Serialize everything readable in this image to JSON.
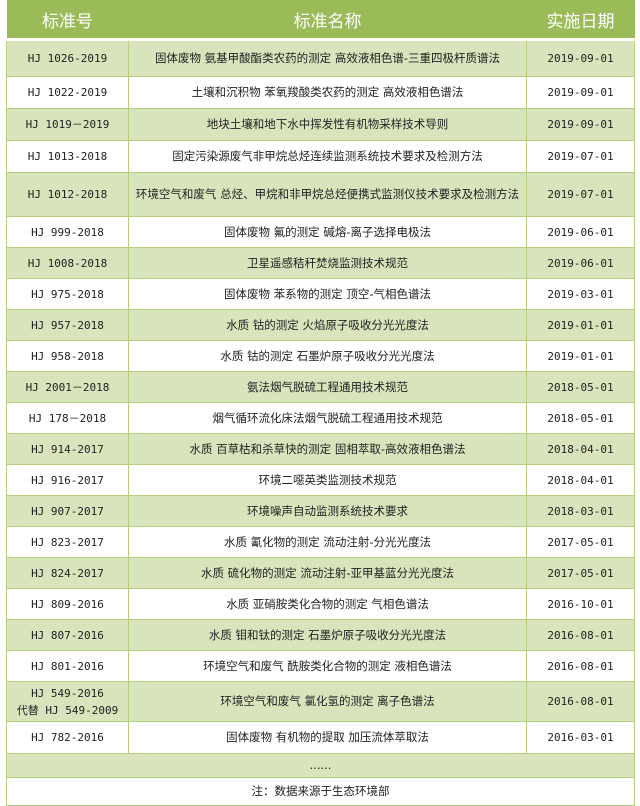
{
  "header": {
    "code": "标准号",
    "name": "标准名称",
    "date": "实施日期"
  },
  "colors": {
    "header": "#9bbb59",
    "stripe": "#d8e4bc"
  },
  "rows": [
    {
      "code": "HJ 1026-2019",
      "name": "固体废物 氨基甲酸酯类农药的测定 高效液相色谱-三重四极杆质谱法",
      "date": "2019-09-01"
    },
    {
      "code": "HJ 1022-2019",
      "name": "土壤和沉积物 苯氧羧酸类农药的测定 高效液相色谱法",
      "date": "2019-09-01"
    },
    {
      "code": "HJ 1019－2019",
      "name": "地块土壤和地下水中挥发性有机物采样技术导则",
      "date": "2019-09-01"
    },
    {
      "code": "HJ 1013-2018",
      "name": "固定污染源废气非甲烷总烃连续监测系统技术要求及检测方法",
      "date": "2019-07-01"
    },
    {
      "code": "HJ 1012-2018",
      "name": "环境空气和废气 总烃、甲烷和非甲烷总烃便携式监测仪技术要求及检测方法",
      "date": "2019-07-01"
    },
    {
      "code": "HJ 999-2018",
      "name": "固体废物 氟的测定 碱熔-离子选择电极法",
      "date": "2019-06-01"
    },
    {
      "code": "HJ 1008-2018",
      "name": "卫星遥感秸秆焚烧监测技术规范",
      "date": "2019-06-01"
    },
    {
      "code": "HJ 975-2018",
      "name": "固体废物 苯系物的测定 顶空-气相色谱法",
      "date": "2019-03-01"
    },
    {
      "code": "HJ 957-2018",
      "name": "水质 钴的测定 火焰原子吸收分光光度法",
      "date": "2019-01-01"
    },
    {
      "code": "HJ 958-2018",
      "name": "水质 钴的测定 石墨炉原子吸收分光光度法",
      "date": "2019-01-01"
    },
    {
      "code": "HJ 2001－2018",
      "name": "氨法烟气脱硫工程通用技术规范",
      "date": "2018-05-01"
    },
    {
      "code": "HJ 178－2018",
      "name": "烟气循环流化床法烟气脱硫工程通用技术规范",
      "date": "2018-05-01"
    },
    {
      "code": "HJ 914-2017",
      "name": "水质 百草枯和杀草快的测定 固相萃取-高效液相色谱法",
      "date": "2018-04-01"
    },
    {
      "code": "HJ 916-2017",
      "name": "环境二噁英类监测技术规范",
      "date": "2018-04-01"
    },
    {
      "code": "HJ 907-2017",
      "name": "环境噪声自动监测系统技术要求",
      "date": "2018-03-01"
    },
    {
      "code": "HJ 823-2017",
      "name": "水质 氰化物的测定 流动注射-分光光度法",
      "date": "2017-05-01"
    },
    {
      "code": "HJ 824-2017",
      "name": "水质 硫化物的测定 流动注射-亚甲基蓝分光光度法",
      "date": "2017-05-01"
    },
    {
      "code": "HJ 809-2016",
      "name": "水质 亚硝胺类化合物的测定 气相色谱法",
      "date": "2016-10-01"
    },
    {
      "code": "HJ 807-2016",
      "name": "水质 钼和钛的测定 石墨炉原子吸收分光光度法",
      "date": "2016-08-01"
    },
    {
      "code": "HJ 801-2016",
      "name": "环境空气和废气 酰胺类化合物的测定 液相色谱法",
      "date": "2016-08-01"
    },
    {
      "code": "HJ 549-2016",
      "code2": "代替 HJ 549-2009",
      "name": "环境空气和废气 氯化氢的测定 离子色谱法",
      "date": "2016-08-01"
    },
    {
      "code": "HJ 782-2016",
      "name": "固体废物 有机物的提取 加压流体萃取法",
      "date": "2016-03-01"
    }
  ],
  "ellipsis": "......",
  "note": "注：数据来源于生态环境部"
}
